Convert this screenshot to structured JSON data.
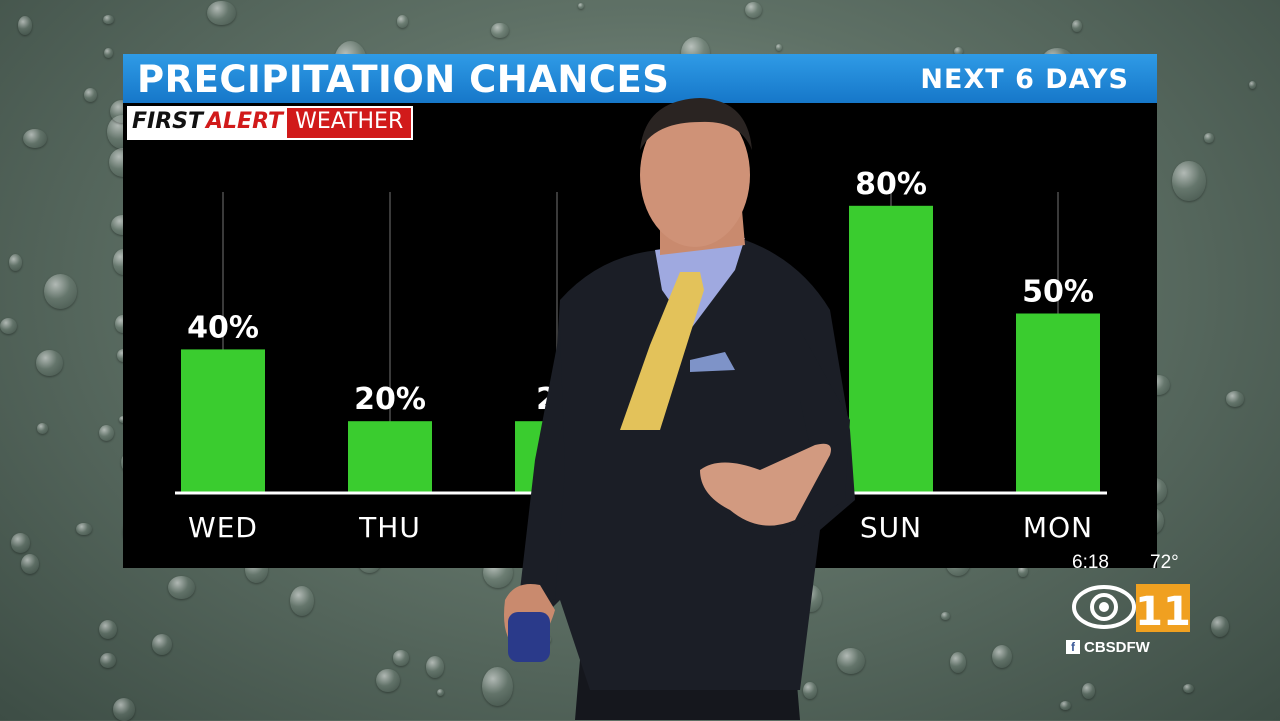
{
  "header": {
    "title": "PRECIPITATION CHANCES",
    "subtitle": "NEXT 6 DAYS"
  },
  "brand": {
    "part1": "FIRST",
    "part2": "ALERT",
    "part3": "WEATHER"
  },
  "bug": {
    "time": "6:18",
    "temp": "72°",
    "handle": "CBSDFW",
    "facebook_icon": "facebook-icon",
    "logo_icon": "cbs-11-logo"
  },
  "colors": {
    "bar": "#3acc2f",
    "title_bar": "#1f87d8",
    "brand_red": "#d11a1a"
  },
  "chart_data": {
    "type": "bar",
    "title": "PRECIPITATION CHANCES",
    "subtitle": "NEXT 6 DAYS",
    "categories": [
      "WED",
      "THU",
      "",
      "",
      "SUN",
      "MON"
    ],
    "values": [
      40,
      20,
      20,
      null,
      80,
      50
    ],
    "labels": [
      "40%",
      "20%",
      "20",
      "",
      "80%",
      "50%"
    ],
    "ylim": [
      0,
      100
    ],
    "unit": "%",
    "grid": true,
    "legend": "none"
  }
}
